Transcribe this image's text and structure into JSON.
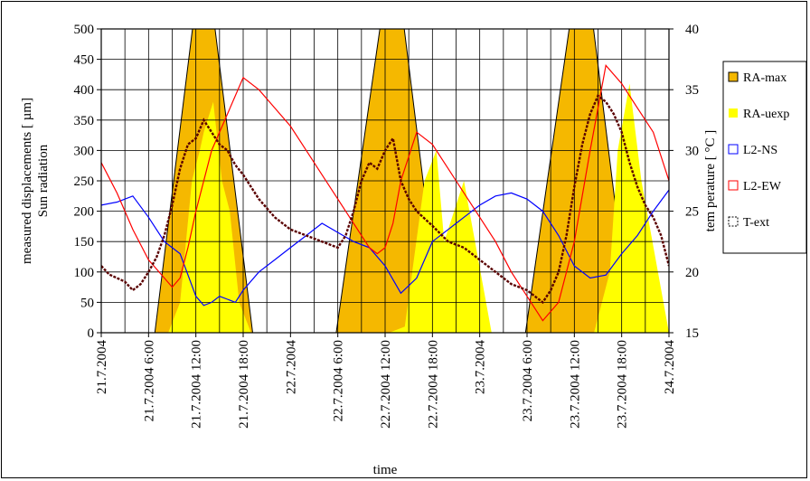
{
  "chart_data": {
    "type": "area",
    "xlabel": "time",
    "ylabel_left_1": "measured displacements [ µm]",
    "ylabel_left_2": "Sun radiation",
    "ylabel_right": "tem perature [ °C ]",
    "x_tick_labels": [
      "21.7.2004",
      "21.7.2004 6:00",
      "21.7.2004 12:00",
      "21.7.2004 18:00",
      "22.7.2004",
      "22.7.2004 6:00",
      "22.7.2004 12:00",
      "22.7.2004 18:00",
      "23.7.2004",
      "23.7.2004 6:00",
      "23.7.2004 12:00",
      "23.7.2004 18:00",
      "24.7.2004"
    ],
    "xlim_hours": [
      0,
      72
    ],
    "ylim_left": [
      0,
      500
    ],
    "ylim_right": [
      15,
      40
    ],
    "y_ticks_left": [
      "0",
      "50",
      "100",
      "150",
      "200",
      "250",
      "300",
      "350",
      "400",
      "450",
      "500"
    ],
    "y_ticks_right": [
      "15",
      "20",
      "25",
      "30",
      "35",
      "40"
    ],
    "grid": true,
    "legend_position": "right",
    "series": [
      {
        "name": "RA-max",
        "axis": "left",
        "color": "#f5b800",
        "style": "area",
        "x_hours": [
          0,
          6.8,
          13,
          19.2,
          29.8,
          37,
          43.2,
          53.8,
          61,
          67.2,
          72
        ],
        "y": [
          0,
          0,
          650,
          0,
          0,
          650,
          0,
          0,
          650,
          0,
          0
        ]
      },
      {
        "name": "RA-uexp",
        "axis": "left",
        "color": "#ffff00",
        "style": "area",
        "x_hours": [
          0,
          8.5,
          10,
          11.5,
          12.5,
          13,
          14.2,
          15.3,
          16.3,
          17.5,
          19,
          36.5,
          38.5,
          41,
          42.5,
          43.5,
          46,
          49.5,
          62.5,
          64.5,
          65.5,
          67,
          68.5,
          72
        ],
        "y": [
          0,
          0,
          50,
          250,
          300,
          330,
          380,
          250,
          200,
          50,
          0,
          0,
          10,
          250,
          300,
          150,
          250,
          0,
          0,
          100,
          300,
          410,
          250,
          0
        ]
      },
      {
        "name": "L2-NS",
        "axis": "left",
        "color": "#0000ff",
        "style": "line",
        "x_hours": [
          0,
          2,
          4,
          6,
          8,
          10,
          12,
          13,
          14,
          15,
          16,
          17,
          18,
          20,
          22,
          24,
          26,
          28,
          30,
          32,
          34,
          36,
          38,
          40,
          42,
          44,
          46,
          48,
          50,
          52,
          54,
          56,
          58,
          60,
          62,
          64,
          66,
          68,
          70,
          72
        ],
        "y": [
          210,
          215,
          225,
          190,
          150,
          130,
          60,
          45,
          50,
          60,
          55,
          50,
          70,
          100,
          120,
          140,
          160,
          180,
          165,
          150,
          140,
          110,
          65,
          90,
          150,
          170,
          190,
          210,
          225,
          230,
          220,
          200,
          160,
          110,
          90,
          95,
          130,
          160,
          200,
          235
        ]
      },
      {
        "name": "L2-EW",
        "axis": "left",
        "color": "#ff0000",
        "style": "line",
        "x_hours": [
          0,
          2,
          4,
          6,
          8,
          9,
          10,
          11,
          12,
          14,
          16,
          18,
          20,
          22,
          24,
          26,
          28,
          30,
          32,
          34,
          35,
          36,
          37,
          38,
          40,
          42,
          44,
          46,
          48,
          50,
          52,
          54,
          56,
          58,
          60,
          62,
          64,
          66,
          68,
          70,
          72
        ],
        "y": [
          280,
          230,
          170,
          120,
          90,
          75,
          90,
          140,
          200,
          300,
          360,
          420,
          400,
          370,
          340,
          300,
          260,
          220,
          180,
          140,
          130,
          140,
          180,
          250,
          330,
          310,
          270,
          230,
          190,
          150,
          100,
          60,
          20,
          50,
          150,
          300,
          440,
          410,
          370,
          330,
          250
        ]
      },
      {
        "name": "T-ext",
        "axis": "right",
        "color": "#5a0000",
        "style": "dashed",
        "x_hours": [
          0,
          1,
          2,
          3,
          4,
          5,
          6,
          7,
          8,
          9,
          10,
          11,
          12,
          13,
          14,
          15,
          16,
          17,
          18,
          20,
          22,
          24,
          26,
          28,
          30,
          31,
          32,
          33,
          34,
          35,
          36,
          37,
          38,
          39,
          40,
          42,
          44,
          46,
          48,
          50,
          52,
          54,
          56,
          57,
          58,
          59,
          60,
          61,
          62,
          63,
          64,
          65,
          66,
          67,
          68,
          69,
          70,
          71,
          72
        ],
        "y": [
          20.5,
          19.8,
          19.5,
          19.2,
          18.5,
          19.0,
          20.0,
          21.2,
          23.0,
          25.5,
          28.5,
          30.5,
          31.0,
          32.5,
          31.5,
          30.5,
          30.0,
          28.8,
          28.0,
          26.0,
          24.5,
          23.5,
          23.0,
          22.5,
          22.0,
          23.0,
          25.0,
          27.5,
          29.0,
          28.5,
          30.0,
          31.0,
          27.5,
          26.0,
          25.0,
          23.8,
          22.5,
          22.0,
          21.0,
          20.0,
          19.0,
          18.5,
          17.5,
          18.5,
          20.0,
          23.0,
          27.0,
          30.5,
          33.0,
          34.5,
          34.0,
          33.0,
          31.5,
          29.0,
          27.0,
          25.5,
          24.5,
          23.0,
          20.5
        ]
      }
    ]
  }
}
